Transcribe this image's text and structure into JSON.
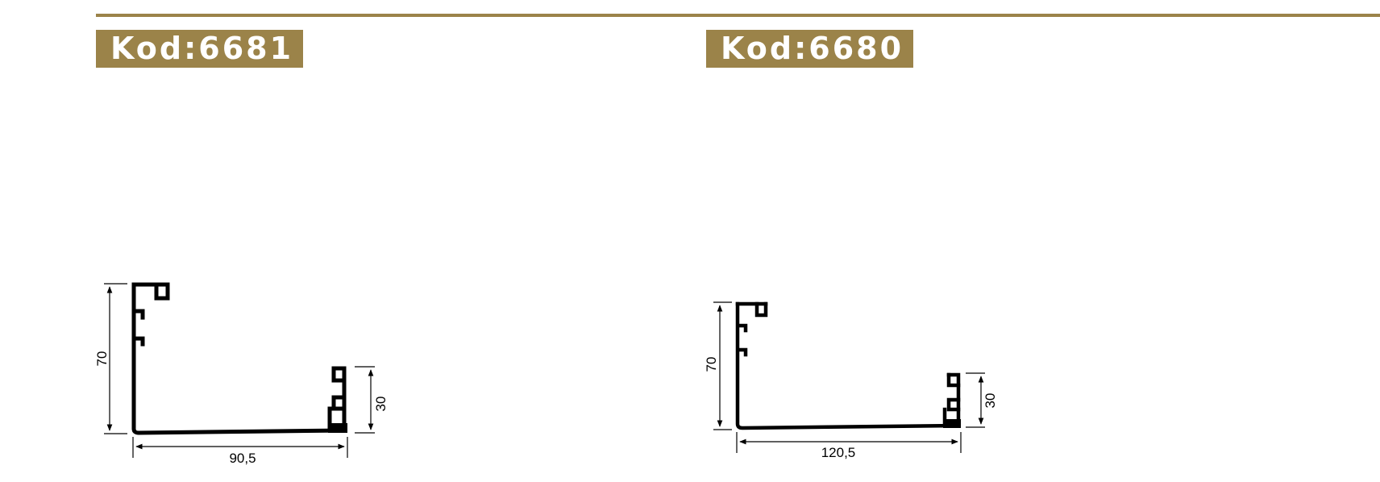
{
  "colors": {
    "accent": "#9b8349",
    "label_text": "#ffffff",
    "profile": "#000000"
  },
  "profiles": [
    {
      "code_label": "Kod:6681",
      "dimensions": {
        "height": "70",
        "width": "90,5",
        "lip_height": "30"
      }
    },
    {
      "code_label": "Kod:6680",
      "dimensions": {
        "height": "70",
        "width": "120,5",
        "lip_height": "30"
      }
    }
  ]
}
